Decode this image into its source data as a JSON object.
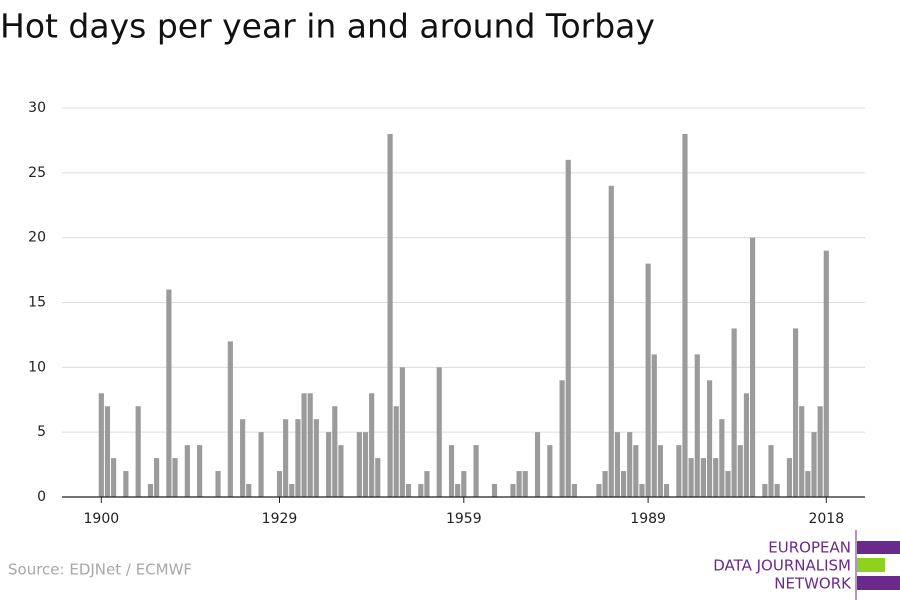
{
  "chart_data": {
    "type": "bar",
    "title": "Hot days per year in and around Torbay",
    "x": [
      1900,
      1901,
      1902,
      1903,
      1904,
      1905,
      1906,
      1907,
      1908,
      1909,
      1910,
      1911,
      1912,
      1913,
      1914,
      1915,
      1916,
      1917,
      1918,
      1919,
      1920,
      1921,
      1922,
      1923,
      1924,
      1925,
      1926,
      1927,
      1928,
      1929,
      1930,
      1931,
      1932,
      1933,
      1934,
      1935,
      1936,
      1937,
      1938,
      1939,
      1940,
      1941,
      1942,
      1943,
      1944,
      1945,
      1946,
      1947,
      1948,
      1949,
      1950,
      1951,
      1952,
      1953,
      1954,
      1955,
      1956,
      1957,
      1958,
      1959,
      1960,
      1961,
      1962,
      1963,
      1964,
      1965,
      1966,
      1967,
      1968,
      1969,
      1970,
      1971,
      1972,
      1973,
      1974,
      1975,
      1976,
      1977,
      1978,
      1979,
      1980,
      1981,
      1982,
      1983,
      1984,
      1985,
      1986,
      1987,
      1988,
      1989,
      1990,
      1991,
      1992,
      1993,
      1994,
      1995,
      1996,
      1997,
      1998,
      1999,
      2000,
      2001,
      2002,
      2003,
      2004,
      2005,
      2006,
      2007,
      2008,
      2009,
      2010,
      2011,
      2012,
      2013,
      2014,
      2015,
      2016,
      2017,
      2018
    ],
    "values": [
      8,
      7,
      3,
      0,
      2,
      0,
      7,
      0,
      1,
      3,
      0,
      16,
      3,
      0,
      4,
      0,
      4,
      0,
      0,
      2,
      0,
      12,
      0,
      6,
      1,
      0,
      5,
      0,
      0,
      2,
      6,
      1,
      6,
      8,
      8,
      6,
      0,
      5,
      7,
      4,
      0,
      0,
      5,
      5,
      8,
      3,
      0,
      28,
      7,
      10,
      1,
      0,
      1,
      2,
      0,
      10,
      0,
      4,
      1,
      2,
      0,
      4,
      0,
      0,
      1,
      0,
      0,
      1,
      2,
      2,
      0,
      5,
      0,
      4,
      0,
      9,
      26,
      1,
      0,
      0,
      0,
      1,
      2,
      24,
      5,
      2,
      5,
      4,
      1,
      18,
      11,
      4,
      1,
      0,
      4,
      28,
      3,
      11,
      3,
      9,
      3,
      6,
      2,
      13,
      4,
      8,
      20,
      0,
      1,
      4,
      1,
      0,
      3,
      13,
      7,
      2,
      5,
      7,
      19
    ],
    "color": "#9b9b9b",
    "xlim": [
      1893.6,
      2024.3
    ],
    "xticks": [
      1900,
      1929,
      1959,
      1989,
      2018
    ],
    "ylim": [
      0,
      30
    ],
    "yticks": [
      0,
      5,
      10,
      15,
      20,
      25,
      30
    ],
    "grid": true
  },
  "source": "Source: EDJNet / ECMWF",
  "logo": [
    "EUROPEAN",
    "DATA JOURNALISM",
    "NETWORK"
  ]
}
